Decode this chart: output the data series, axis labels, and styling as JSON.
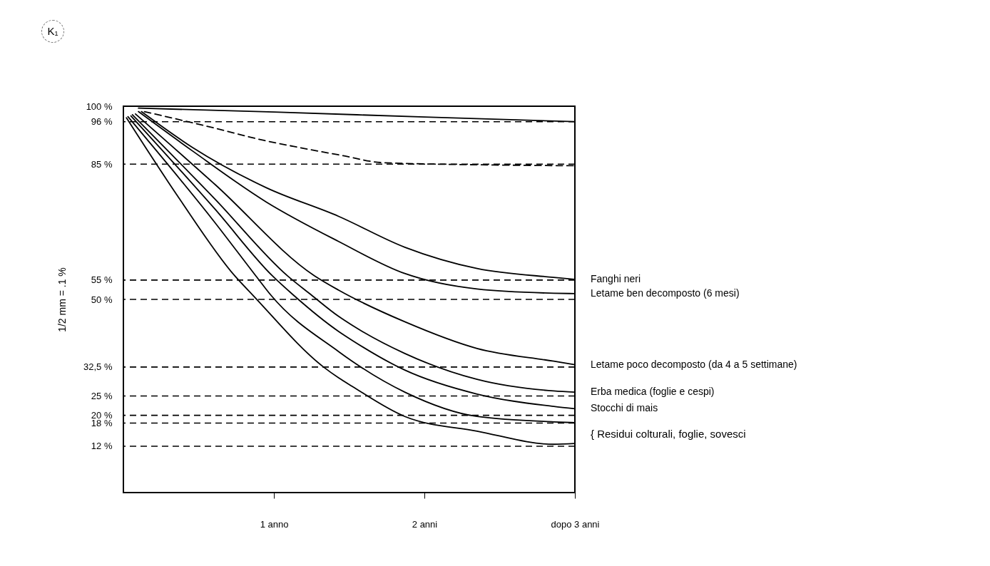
{
  "chart_data": {
    "type": "line",
    "xlabel": null,
    "ylabel": "1/2 mm = .1 %",
    "xlim": [
      0,
      3
    ],
    "ylim": [
      0,
      100
    ],
    "xticks": [
      {
        "value": 1,
        "label": "1 anno"
      },
      {
        "value": 2,
        "label": "2 anni"
      },
      {
        "value": 3,
        "label": "dopo 3 anni"
      }
    ],
    "yticks": [
      {
        "value": 100,
        "label": "100 %"
      },
      {
        "value": 96,
        "label": "96 %"
      },
      {
        "value": 85,
        "label": "85 %"
      },
      {
        "value": 55,
        "label": "55 %"
      },
      {
        "value": 50,
        "label": "50 %"
      },
      {
        "value": 32.5,
        "label": "32,5 %"
      },
      {
        "value": 25,
        "label": "25   %"
      },
      {
        "value": 20,
        "label": "20   %"
      },
      {
        "value": 18,
        "label": "18   %"
      },
      {
        "value": 12,
        "label": "12   %"
      }
    ],
    "grid": false,
    "line_style": "solid",
    "series": [
      {
        "color": "#000000",
        "x": [
          0.1,
          1,
          2,
          3
        ],
        "values": [
          99.5,
          98.5,
          97.2,
          96
        ]
      },
      {
        "color": "#000000",
        "line_style": "dashed",
        "x": [
          0.14,
          0.61,
          0.94,
          1.17,
          1.46,
          1.72,
          2.45,
          3
        ],
        "values": [
          98.6,
          94.3,
          91.1,
          89.3,
          87.2,
          85.4,
          84.8,
          84.6
        ]
      },
      {
        "name": "Fanghi neri",
        "color": "#000000",
        "x": [
          0.12,
          0.46,
          0.95,
          1.43,
          1.87,
          2.35,
          2.86,
          3
        ],
        "values": [
          98.6,
          89.3,
          78.9,
          71.5,
          63.5,
          58,
          55.7,
          55.2
        ]
      },
      {
        "name": "Letame ben decomposto (6 mesi)",
        "color": "#000000",
        "x": [
          0.1,
          0.46,
          0.95,
          1.43,
          1.87,
          2.35,
          2.86,
          3
        ],
        "values": [
          98.6,
          88.4,
          75.2,
          65,
          56.7,
          52.7,
          51.6,
          51.5
        ]
      },
      {
        "name": "Letame poco decomposto (da 4 a 5 settimane)",
        "color": "#000000",
        "x": [
          0.08,
          0.61,
          1.27,
          1.43,
          1.87,
          2.35,
          2.86,
          3
        ],
        "values": [
          98,
          79.7,
          56.1,
          52.4,
          44.2,
          37.3,
          34,
          33.1
        ]
      },
      {
        "name": "Erba medica (foglie e cespi)",
        "color": "#000000",
        "x": [
          0.06,
          0.61,
          1.09,
          1.25,
          1.43,
          1.52,
          1.87,
          2.35,
          2.86,
          3
        ],
        "values": [
          97.8,
          75.9,
          56.1,
          51.1,
          45.6,
          43.3,
          36,
          29.3,
          26.3,
          26
        ]
      },
      {
        "name": "Stocchi di mais",
        "color": "#000000",
        "x": [
          0.05,
          0.61,
          0.99,
          1.13,
          1.43,
          1.52,
          1.87,
          2.35,
          2.86,
          3
        ],
        "values": [
          97.5,
          73.3,
          56.1,
          51.1,
          41.7,
          39.4,
          31.7,
          25.5,
          22.3,
          21.7
        ]
      },
      {
        "color": "#000000",
        "x": [
          0.03,
          0.61,
          0.88,
          0.98,
          1.43,
          1.52,
          1.87,
          2.35,
          2.86,
          3
        ],
        "values": [
          97.3,
          69.8,
          56.1,
          51.1,
          36.5,
          34,
          26,
          19.7,
          18.3,
          18.1
        ]
      },
      {
        "color": "#000000",
        "x": [
          0.02,
          0.37,
          0.74,
          0.86,
          1.33,
          1.43,
          1.52,
          1.87,
          2.35,
          2.86,
          3
        ],
        "values": [
          97,
          76.2,
          56.1,
          51.1,
          32.5,
          29.7,
          27.5,
          19.7,
          15.9,
          12.5,
          12.7
        ]
      }
    ],
    "ref_lines": [
      {
        "axis": "y",
        "value": 96,
        "line_style": "dashed",
        "color": "#000000"
      },
      {
        "axis": "y",
        "value": 85,
        "line_style": "dashed",
        "color": "#000000"
      },
      {
        "axis": "y",
        "value": 55,
        "line_style": "dashed",
        "color": "#000000"
      },
      {
        "axis": "y",
        "value": 50,
        "line_style": "dashed",
        "color": "#000000"
      },
      {
        "axis": "y",
        "value": 32.5,
        "line_style": "dashed",
        "color": "#000000"
      },
      {
        "axis": "y",
        "value": 25,
        "line_style": "dashed",
        "color": "#000000"
      },
      {
        "axis": "y",
        "value": 20,
        "line_style": "dashed",
        "color": "#000000"
      },
      {
        "axis": "y",
        "value": 18,
        "line_style": "dashed",
        "color": "#000000"
      },
      {
        "axis": "y",
        "value": 12,
        "line_style": "dashed",
        "color": "#000000"
      }
    ],
    "annotations": [
      "K₁",
      "{ Residui colturali, foglie, sovesci"
    ]
  }
}
